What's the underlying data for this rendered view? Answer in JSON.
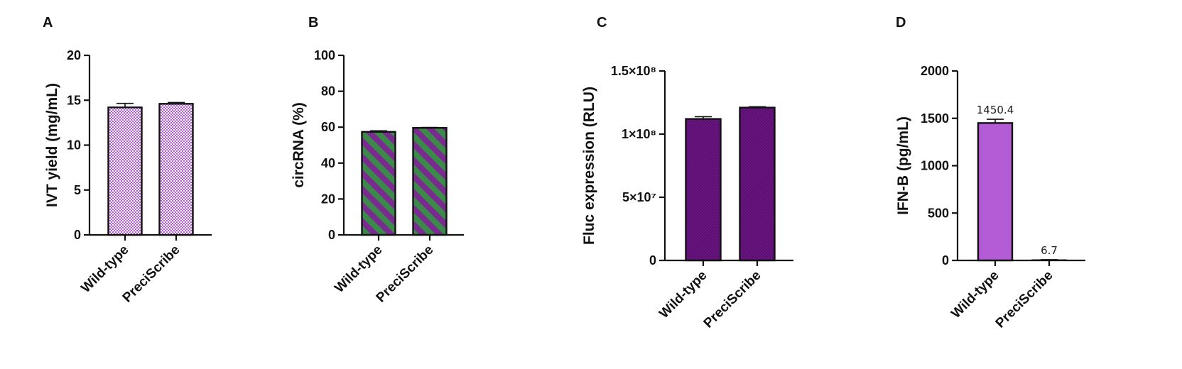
{
  "chart_data": [
    {
      "panel": "A",
      "type": "bar",
      "categories": [
        "Wild-type",
        "PreciScribe"
      ],
      "values": [
        14.2,
        14.6
      ],
      "errors": [
        0.45,
        0.15
      ],
      "ylabel": "IVT yield (mg/mL)",
      "xlabel": "",
      "ylim": [
        0,
        20
      ],
      "yticks": [
        0,
        5,
        10,
        15,
        20
      ],
      "ytick_labels": [
        "0",
        "5",
        "10",
        "15",
        "20"
      ],
      "data_labels": [],
      "style": "checker",
      "colors": {
        "primary": "#b85ad6",
        "secondary": "#ffffff"
      },
      "grid": false,
      "legend": "none"
    },
    {
      "panel": "B",
      "type": "bar",
      "categories": [
        "Wild-type",
        "PreciScribe"
      ],
      "values": [
        57.4,
        59.6
      ],
      "errors": [
        0.6,
        0.25
      ],
      "ylabel": "circRNA (%)",
      "xlabel": "",
      "ylim": [
        0,
        100
      ],
      "yticks": [
        0,
        20,
        40,
        60,
        80,
        100
      ],
      "ytick_labels": [
        "0",
        "20",
        "40",
        "60",
        "80",
        "100"
      ],
      "data_labels": [],
      "style": "stripes",
      "colors": {
        "primary": "#7a2b8f",
        "secondary": "#3c8a4a"
      },
      "grid": false,
      "legend": "none"
    },
    {
      "panel": "C",
      "type": "bar",
      "categories": [
        "Wild-type",
        "PreciScribe"
      ],
      "values": [
        112000000,
        121000000
      ],
      "errors": [
        1800000,
        700000
      ],
      "ylabel": "Fluc expression (RLU)",
      "xlabel": "",
      "ylim": [
        0,
        150000000
      ],
      "yticks": [
        0,
        50000000,
        100000000,
        150000000
      ],
      "ytick_labels": [
        "0",
        "5×10⁷",
        "1×10⁸",
        "1.5×10⁸"
      ],
      "data_labels": [],
      "style": "fine-hatch",
      "colors": {
        "primary": "#6c1485",
        "secondary": "#4e0e61"
      },
      "grid": false,
      "legend": "none"
    },
    {
      "panel": "D",
      "type": "bar",
      "categories": [
        "Wild-type",
        "PreciScribe"
      ],
      "values": [
        1450.4,
        6.7
      ],
      "errors": [
        40,
        1
      ],
      "ylabel": "IFN-B (pg/mL)",
      "xlabel": "",
      "ylim": [
        0,
        2000
      ],
      "yticks": [
        0,
        500,
        1000,
        1500,
        2000
      ],
      "ytick_labels": [
        "0",
        "500",
        "1000",
        "1500",
        "2000"
      ],
      "data_labels": [
        "1450.4",
        "6.7"
      ],
      "style": "solid",
      "colors": {
        "primary": "#b35cd6",
        "secondary": "#b35cd6"
      },
      "grid": false,
      "legend": "none"
    }
  ]
}
